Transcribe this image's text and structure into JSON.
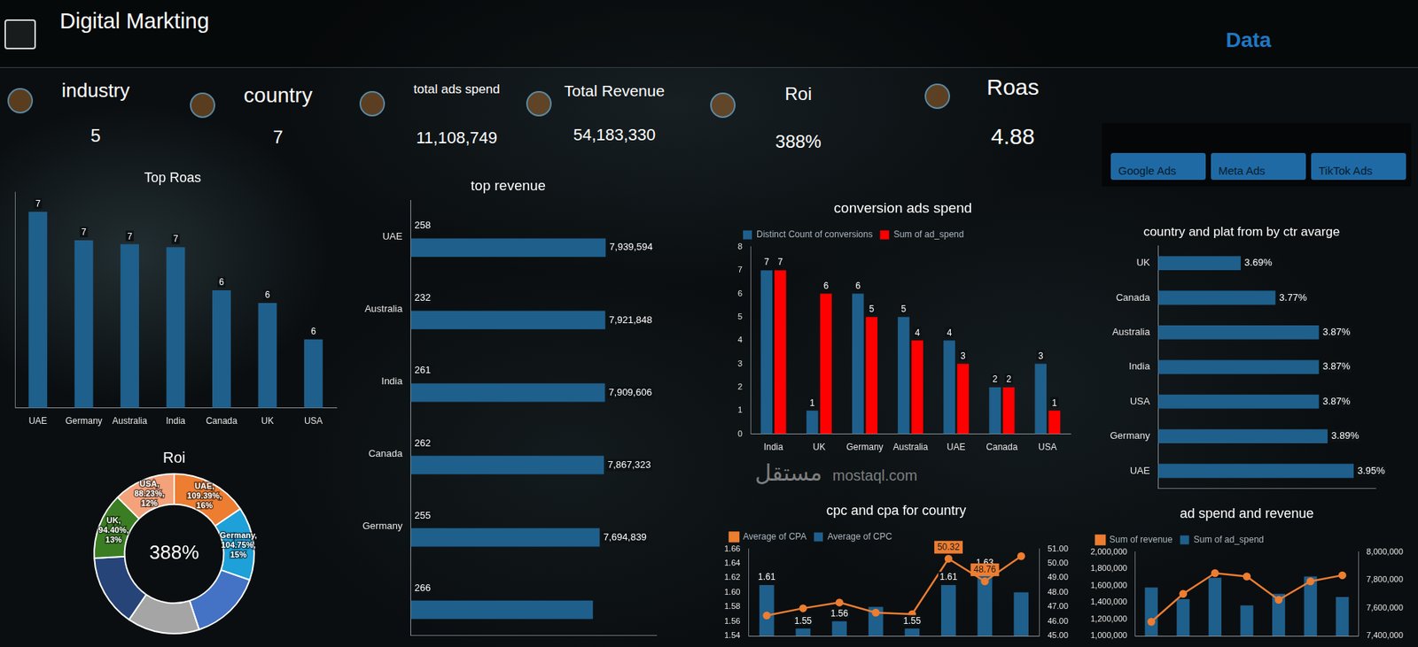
{
  "header": {
    "title": "Digital Markting",
    "section": "Data"
  },
  "kpis": [
    {
      "label": "industry",
      "value": 5
    },
    {
      "label": "country",
      "value": 7
    },
    {
      "label": "total ads spend",
      "value": "11,108,749"
    },
    {
      "label": "Total Revenue",
      "value": "54,183,330"
    },
    {
      "label": "Roi",
      "value": "388%"
    },
    {
      "label": "Roas",
      "value": 4.88
    }
  ],
  "slicer": {
    "items": [
      "Google Ads",
      "Meta Ads",
      "TikTok Ads"
    ]
  },
  "watermark": [
    "مستقل",
    "mostaql.com"
  ],
  "chart_data": [
    {
      "type": "bar",
      "title": "Top Roas",
      "categories": [
        "UAE",
        "Germany",
        "Australia",
        "India",
        "Canada",
        "UK",
        "USA"
      ],
      "values": [
        7.2,
        6.91,
        6.87,
        6.84,
        6.4,
        6.27,
        5.9
      ],
      "value_labels": [
        "7",
        "7",
        "7",
        "7",
        "6",
        "6",
        "6"
      ],
      "color": "#1f5f8b",
      "ylim": [
        5.2,
        7.4
      ],
      "data_labels": true,
      "tick_labels": "x",
      "grid": false
    },
    {
      "type": "bar",
      "orientation": "horizontal",
      "title": "top revenue",
      "categories": [
        "UAE",
        "Australia",
        "India",
        "Canada",
        "Germany",
        null
      ],
      "series": [
        {
          "color": "#1f5f8b",
          "values": [
            258,
            232,
            261,
            262,
            255,
            266
          ]
        },
        {
          "color": "#1f5f8b",
          "values": [
            7939594,
            7921848,
            7909606,
            7867323,
            7694839,
            7420000
          ],
          "value_labels": [
            "7,939,594",
            "7,921,848",
            "7,909,606",
            "7,867,323",
            "7,694,839",
            null
          ]
        }
      ],
      "xlim": [
        0,
        10000000
      ],
      "data_labels": true,
      "tick_labels": "y",
      "grid": false
    },
    {
      "type": "bar",
      "title": "conversion ads spend",
      "categories": [
        "India",
        "UK",
        "Germany",
        "Australia",
        "UAE",
        "Canada",
        "USA"
      ],
      "series": [
        {
          "name": "Distinct Count of conversions",
          "color": "#1f5f8b",
          "values": [
            7,
            1,
            6,
            5,
            4,
            2,
            3
          ]
        },
        {
          "name": "Sum of ad_spend",
          "color": "#ff0000",
          "values": [
            7,
            6,
            5,
            4,
            3,
            2,
            1
          ]
        }
      ],
      "ylim": [
        0,
        8
      ],
      "yticks": [
        0,
        1,
        2,
        3,
        4,
        5,
        6,
        7,
        8
      ],
      "legend": "top-left",
      "data_labels": true,
      "grid": false
    },
    {
      "type": "bar",
      "orientation": "horizontal",
      "title": "country and plat from by ctr avarge",
      "categories": [
        "UK",
        "Canada",
        "Australia",
        "India",
        "USA",
        "Germany",
        "UAE"
      ],
      "values": [
        3.69,
        3.77,
        3.87,
        3.87,
        3.87,
        3.89,
        3.95
      ],
      "value_labels": [
        "3.69%",
        "3.77%",
        "3.87%",
        "3.87%",
        "3.87%",
        "3.89%",
        "3.95%"
      ],
      "color": "#1f5f8b",
      "xlim": [
        3.5,
        4.0
      ],
      "data_labels": true,
      "tick_labels": "y",
      "grid": false
    },
    {
      "type": "doughnut",
      "title": "Roi",
      "categories": [
        "UAE",
        "Germany",
        null,
        null,
        null,
        "UK",
        "USA"
      ],
      "values": [
        109.39,
        104.75,
        103.2,
        102.9,
        102.93,
        94.4,
        88.23
      ],
      "value_labels": [
        "UAE, 109.39%, 16%",
        "Germany, 104.75%, 15%",
        null,
        null,
        null,
        "UK, 94.40%, 13%",
        "USA, 88.23%, 12%"
      ],
      "colors": [
        "#ed7d31",
        "#1ea0d8",
        "#4472c4",
        "#a5a5a5",
        "#264478",
        "#3b7d23",
        "#f4a27a"
      ],
      "center_text": "388%",
      "data_labels": true
    },
    {
      "type": "bar",
      "title": "cpc and cpa for country",
      "categories": [
        null,
        null,
        null,
        null,
        null,
        null,
        null,
        null
      ],
      "series": [
        {
          "name": "Average of CPC",
          "type": "bar",
          "color": "#1f5f8b",
          "values": [
            1.61,
            1.55,
            1.56,
            1.58,
            1.55,
            1.61,
            1.63,
            1.6
          ],
          "value_labels": [
            "1.61",
            "1.55",
            "1.56",
            null,
            "1.55",
            "1.61",
            "1.63",
            null
          ]
        },
        {
          "name": "Average of CPA",
          "type": "line",
          "axis": "y2",
          "color": "#ed7d31",
          "marker": "circle",
          "values": [
            46.4,
            46.9,
            47.3,
            46.6,
            46.5,
            50.32,
            48.76,
            50.5
          ],
          "value_labels": [
            null,
            null,
            null,
            null,
            null,
            "50.32",
            "48.76",
            null
          ]
        }
      ],
      "ylim": [
        1.54,
        1.66
      ],
      "yticks": [
        1.54,
        1.56,
        1.58,
        {
          "value": 1.6,
          "label": "1.60"
        },
        1.62,
        1.64,
        1.66
      ],
      "y2lim": [
        45,
        51
      ],
      "y2ticks": [
        {
          "value": 45,
          "label": "45.00"
        },
        {
          "value": 46,
          "label": "46.00"
        },
        {
          "value": 47,
          "label": "47.00"
        },
        {
          "value": 48,
          "label": "48.00"
        },
        {
          "value": 49,
          "label": "49.00"
        },
        {
          "value": 50,
          "label": "50.00"
        },
        {
          "value": 51,
          "label": "51.00"
        }
      ],
      "legend": "top-left",
      "data_labels": true,
      "tick_labels": "y",
      "grid": false
    },
    {
      "type": "bar",
      "title": "ad spend and revenue",
      "categories": [
        null,
        null,
        null,
        null,
        null,
        null,
        null
      ],
      "series": [
        {
          "name": "Sum of ad_spend",
          "type": "bar",
          "color": "#1f5f8b",
          "values": [
            1577000,
            1438000,
            1692000,
            1362000,
            1500000,
            1708000,
            1462000
          ]
        },
        {
          "name": "Sum of revenue",
          "type": "line",
          "axis": "y2",
          "color": "#ed7d31",
          "marker": "circle",
          "values": [
            7500000,
            7700000,
            7848000,
            7824000,
            7657000,
            7790000,
            7833000
          ]
        }
      ],
      "ylim": [
        1000000,
        2000000
      ],
      "yticks": [
        {
          "value": 1000000,
          "label": "1,000,000"
        },
        {
          "value": 1200000,
          "label": "1,200,000"
        },
        {
          "value": 1400000,
          "label": "1,400,000"
        },
        {
          "value": 1600000,
          "label": "1,600,000"
        },
        {
          "value": 1800000,
          "label": "1,800,000"
        },
        {
          "value": 2000000,
          "label": "2,000,000"
        }
      ],
      "y2lim": [
        7400000,
        8000000
      ],
      "y2ticks": [
        {
          "value": 7400000,
          "label": "7,400,000"
        },
        {
          "value": 7600000,
          "label": "7,600,000"
        },
        {
          "value": 7800000,
          "label": "7,800,000"
        },
        {
          "value": 8000000,
          "label": "8,000,000"
        }
      ],
      "legend": "top-left",
      "data_labels": false,
      "tick_labels": "y",
      "grid": false
    }
  ]
}
